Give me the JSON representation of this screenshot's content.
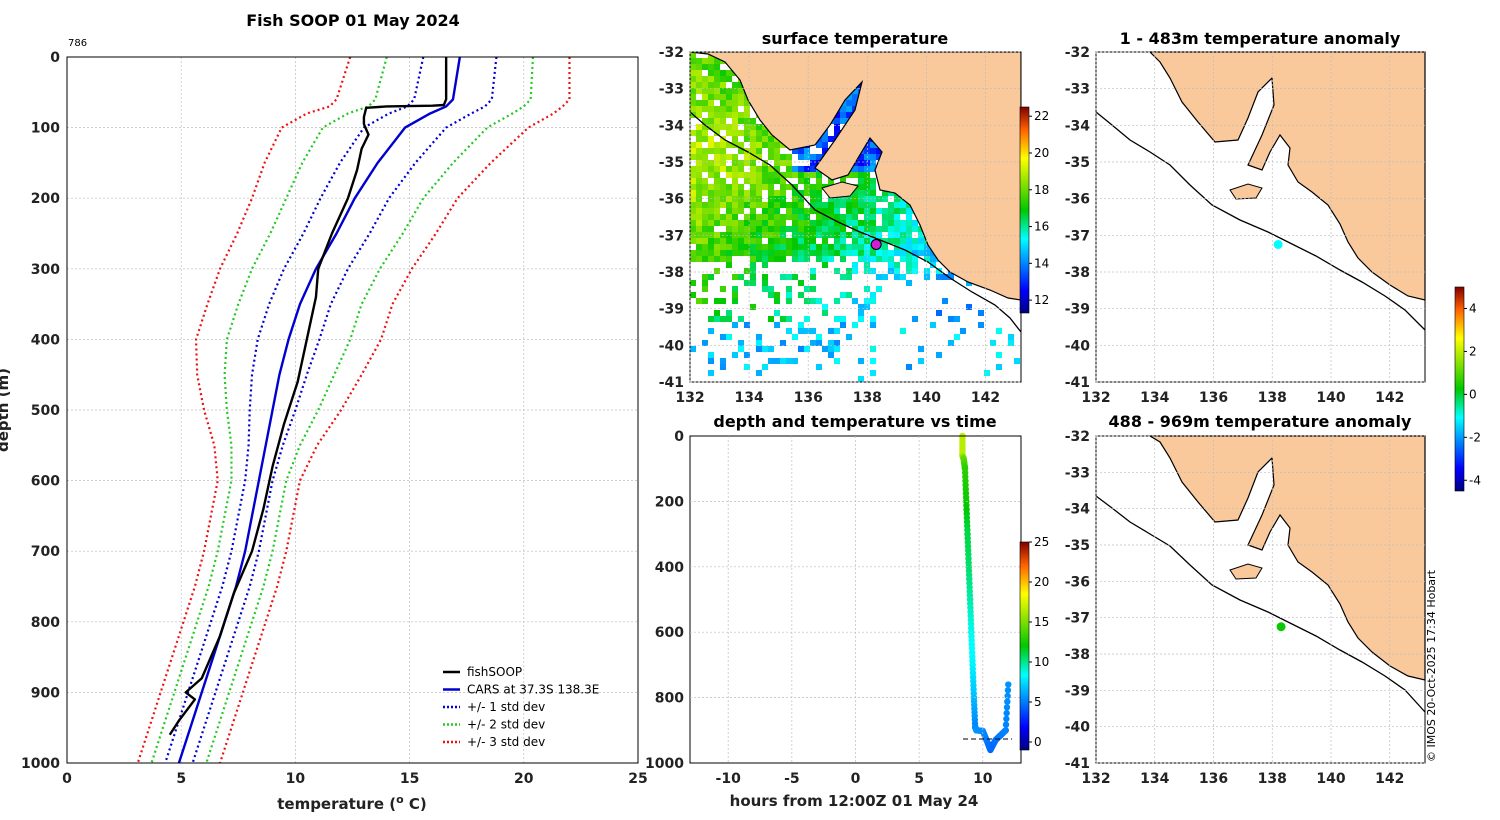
{
  "chart_data": [
    {
      "type": "line",
      "title": "Fish SOOP 01 May 2024",
      "id_label": "786",
      "xlabel": "temperature (",
      "xlabel_sup": "o",
      "xlabel_tail": " C)",
      "ylabel": "depth (m)",
      "xlim": [
        0,
        25
      ],
      "ylim": [
        1000,
        0
      ],
      "xticks": [
        0,
        5,
        10,
        15,
        20,
        25
      ],
      "yticks": [
        0,
        100,
        200,
        300,
        400,
        500,
        600,
        700,
        800,
        900,
        1000
      ],
      "depth": [
        0,
        60,
        70,
        80,
        100,
        150,
        200,
        250,
        300,
        350,
        400,
        450,
        500,
        550,
        600,
        650,
        700,
        750,
        800,
        850,
        900,
        950,
        1000
      ],
      "cars_mean": [
        17.2,
        16.9,
        16.6,
        15.9,
        14.8,
        13.6,
        12.6,
        11.8,
        10.9,
        10.2,
        9.7,
        9.3,
        9.0,
        8.7,
        8.4,
        8.1,
        7.8,
        7.4,
        6.9,
        6.4,
        5.9,
        5.4,
        4.9
      ],
      "std": [
        1.6,
        1.7,
        1.7,
        1.8,
        1.8,
        1.65,
        1.5,
        1.45,
        1.4,
        1.35,
        1.35,
        1.2,
        1.0,
        0.75,
        0.6,
        0.6,
        0.6,
        0.6,
        0.6,
        0.6,
        0.6,
        0.6,
        0.6
      ],
      "series": [
        {
          "name": "fishSOOP",
          "color": "#000000",
          "style": "solid",
          "points": [
            [
              16.6,
              0
            ],
            [
              16.6,
              60
            ],
            [
              16.5,
              68
            ],
            [
              16.0,
              69
            ],
            [
              14.0,
              70
            ],
            [
              13.1,
              72
            ],
            [
              13.0,
              85
            ],
            [
              13.0,
              95
            ],
            [
              13.2,
              110
            ],
            [
              12.9,
              130
            ],
            [
              12.7,
              160
            ],
            [
              12.3,
              200
            ],
            [
              11.6,
              250
            ],
            [
              11.0,
              300
            ],
            [
              10.9,
              340
            ],
            [
              10.5,
              400
            ],
            [
              10.1,
              460
            ],
            [
              9.5,
              520
            ],
            [
              9.0,
              580
            ],
            [
              8.6,
              640
            ],
            [
              8.1,
              700
            ],
            [
              7.3,
              760
            ],
            [
              6.7,
              820
            ],
            [
              5.9,
              880
            ],
            [
              5.2,
              900
            ],
            [
              5.6,
              910
            ],
            [
              4.9,
              940
            ],
            [
              4.5,
              960
            ]
          ]
        },
        {
          "name": "CARS at 37.3S 138.3E",
          "color": "#0000d0",
          "style": "solid"
        },
        {
          "name": "+/- 1 std dev",
          "color": "#0000d0",
          "style": "dotted",
          "k": 1
        },
        {
          "name": "+/- 2 std dev",
          "color": "#22c922",
          "style": "dotted",
          "k": 2
        },
        {
          "name": "+/- 3 std dev",
          "color": "#ee1111",
          "style": "dotted",
          "k": 3
        }
      ]
    },
    {
      "type": "heatmap",
      "title": "surface temperature",
      "xticks": [
        132,
        134,
        136,
        138,
        140,
        142
      ],
      "yticks": [
        -32,
        -33,
        -34,
        -35,
        -36,
        -37,
        -38,
        -39,
        -40,
        -41
      ],
      "xlim": [
        132,
        143.2
      ],
      "ylim": [
        -41,
        -32
      ],
      "colorbar_ticks": [
        12,
        14,
        16,
        18,
        20,
        22
      ],
      "colorbar_range": [
        11.3,
        22.5
      ],
      "marker": {
        "lon": 138.3,
        "lat": -37.25,
        "color": "#d020d0"
      }
    },
    {
      "type": "scatter",
      "title": "depth and temperature vs time",
      "xlabel": "hours from 12:00Z 01 May 24",
      "xlim": [
        -13,
        13
      ],
      "ylim": [
        1000,
        0
      ],
      "xticks": [
        -10,
        -5,
        0,
        5,
        10
      ],
      "yticks": [
        0,
        200,
        400,
        600,
        800,
        1000
      ],
      "colorbar_ticks": [
        0,
        5,
        10,
        15,
        20,
        25
      ],
      "colorbar_range": [
        -1,
        25
      ],
      "points": [
        [
          8.4,
          0,
          16.6
        ],
        [
          8.4,
          60,
          16.6
        ],
        [
          8.5,
          70,
          14.5
        ],
        [
          8.6,
          100,
          13
        ],
        [
          8.7,
          200,
          12.3
        ],
        [
          8.8,
          300,
          11
        ],
        [
          8.9,
          400,
          10.5
        ],
        [
          9.0,
          500,
          9.6
        ],
        [
          9.1,
          600,
          8.6
        ],
        [
          9.2,
          700,
          8.1
        ],
        [
          9.3,
          800,
          6.7
        ],
        [
          9.4,
          890,
          5.2
        ],
        [
          9.5,
          900,
          5.6
        ],
        [
          10.0,
          902,
          5.5
        ],
        [
          10.4,
          940,
          4.9
        ],
        [
          10.6,
          960,
          4.5
        ],
        [
          11.0,
          930,
          4.7
        ],
        [
          11.4,
          915,
          5.0
        ],
        [
          11.8,
          900,
          5.2
        ],
        [
          12.0,
          760,
          5.6
        ]
      ]
    },
    {
      "type": "heatmap",
      "title": "1 - 483m temperature anomaly",
      "xticks": [
        132,
        134,
        136,
        138,
        140,
        142
      ],
      "yticks": [
        -32,
        -33,
        -34,
        -35,
        -36,
        -37,
        -38,
        -39,
        -40,
        -41
      ],
      "xlim": [
        132,
        143.2
      ],
      "ylim": [
        -41,
        -32
      ],
      "marker": {
        "lon": 138.2,
        "lat": -37.25,
        "anomaly": -1.1
      }
    },
    {
      "type": "heatmap",
      "title": "488 - 969m temperature anomaly",
      "xticks": [
        132,
        134,
        136,
        138,
        140,
        142
      ],
      "yticks": [
        -32,
        -33,
        -34,
        -35,
        -36,
        -37,
        -38,
        -39,
        -40,
        -41
      ],
      "xlim": [
        132,
        143.2
      ],
      "ylim": [
        -41,
        -32
      ],
      "marker": {
        "lon": 138.3,
        "lat": -37.25,
        "anomaly": 0.3
      },
      "colorbar_ticks": [
        -4,
        -2,
        0,
        2,
        4
      ],
      "colorbar_range": [
        -4.5,
        5
      ]
    }
  ],
  "footer": {
    "credit": "© IMOS 20-Oct-2025 17:34 Hobart"
  },
  "colors": {
    "land": "#f9c99c",
    "coast": "#000000"
  }
}
